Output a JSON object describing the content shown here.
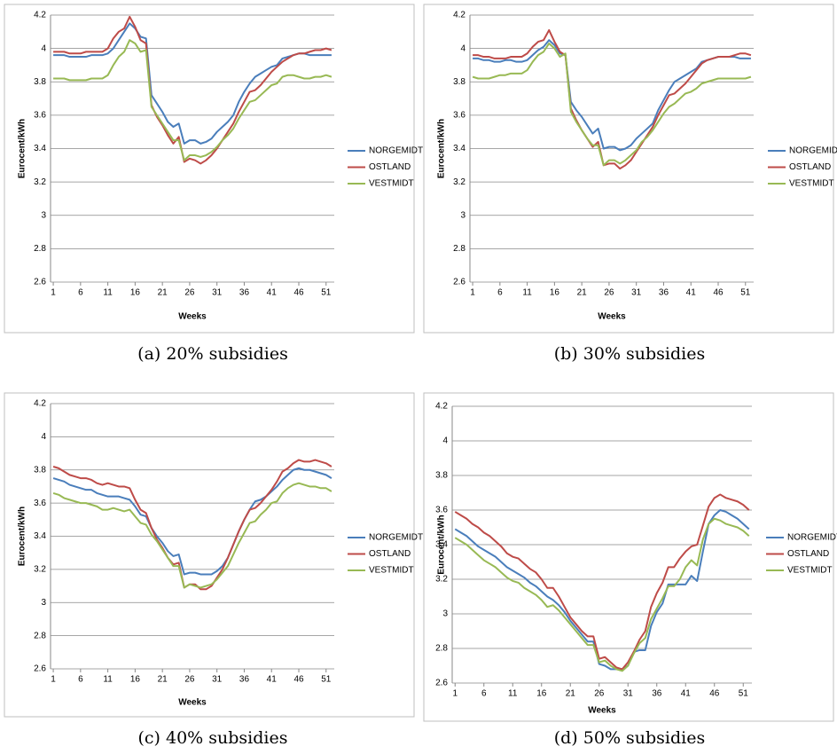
{
  "chart_data": [
    {
      "type": "line",
      "caption": "(a) 20% subsidies",
      "xlabel": "Weeks",
      "ylabel": "Eurocent/kWh",
      "x": [
        1,
        2,
        3,
        4,
        5,
        6,
        7,
        8,
        9,
        10,
        11,
        12,
        13,
        14,
        15,
        16,
        17,
        18,
        19,
        20,
        21,
        22,
        23,
        24,
        25,
        26,
        27,
        28,
        29,
        30,
        31,
        32,
        33,
        34,
        35,
        36,
        37,
        38,
        39,
        40,
        41,
        42,
        43,
        44,
        45,
        46,
        47,
        48,
        49,
        50,
        51,
        52
      ],
      "xlim": [
        0.5,
        52.5
      ],
      "xticks": [
        1,
        6,
        11,
        16,
        21,
        26,
        31,
        36,
        41,
        46,
        51
      ],
      "ylim": [
        2.6,
        4.2
      ],
      "yticks": [
        2.6,
        2.8,
        3,
        3.2,
        3.4,
        3.6,
        3.8,
        4,
        4.2
      ],
      "grid": true,
      "series": [
        {
          "name": "NORGEMIDT",
          "color": "#4a7ebb",
          "values": [
            3.96,
            3.96,
            3.96,
            3.95,
            3.95,
            3.95,
            3.95,
            3.96,
            3.96,
            3.96,
            3.97,
            4.0,
            4.05,
            4.1,
            4.15,
            4.12,
            4.07,
            4.06,
            3.72,
            3.67,
            3.62,
            3.56,
            3.53,
            3.55,
            3.43,
            3.45,
            3.45,
            3.43,
            3.44,
            3.46,
            3.5,
            3.53,
            3.56,
            3.6,
            3.68,
            3.74,
            3.79,
            3.83,
            3.85,
            3.87,
            3.89,
            3.9,
            3.94,
            3.95,
            3.96,
            3.97,
            3.97,
            3.96,
            3.96,
            3.96,
            3.96,
            3.96
          ]
        },
        {
          "name": "OSTLAND",
          "color": "#be4b48",
          "values": [
            3.98,
            3.98,
            3.98,
            3.97,
            3.97,
            3.97,
            3.98,
            3.98,
            3.98,
            3.98,
            4.0,
            4.06,
            4.1,
            4.12,
            4.19,
            4.13,
            4.05,
            4.03,
            3.66,
            3.59,
            3.54,
            3.48,
            3.43,
            3.47,
            3.32,
            3.34,
            3.33,
            3.31,
            3.33,
            3.36,
            3.4,
            3.45,
            3.5,
            3.55,
            3.62,
            3.68,
            3.74,
            3.75,
            3.78,
            3.82,
            3.86,
            3.89,
            3.92,
            3.94,
            3.96,
            3.97,
            3.97,
            3.98,
            3.99,
            3.99,
            4.0,
            3.99
          ]
        },
        {
          "name": "VESTMIDT",
          "color": "#98b954",
          "values": [
            3.82,
            3.82,
            3.82,
            3.81,
            3.81,
            3.81,
            3.81,
            3.82,
            3.82,
            3.82,
            3.84,
            3.9,
            3.95,
            3.98,
            4.05,
            4.03,
            3.98,
            3.99,
            3.65,
            3.6,
            3.55,
            3.5,
            3.45,
            3.45,
            3.33,
            3.36,
            3.36,
            3.35,
            3.36,
            3.38,
            3.41,
            3.45,
            3.48,
            3.52,
            3.58,
            3.63,
            3.68,
            3.69,
            3.72,
            3.75,
            3.78,
            3.79,
            3.83,
            3.84,
            3.84,
            3.83,
            3.82,
            3.82,
            3.83,
            3.83,
            3.84,
            3.83
          ]
        }
      ]
    },
    {
      "type": "line",
      "caption": "(b) 30% subsidies",
      "xlabel": "Weeks",
      "ylabel": "Eurocent/kWh",
      "x": [
        1,
        2,
        3,
        4,
        5,
        6,
        7,
        8,
        9,
        10,
        11,
        12,
        13,
        14,
        15,
        16,
        17,
        18,
        19,
        20,
        21,
        22,
        23,
        24,
        25,
        26,
        27,
        28,
        29,
        30,
        31,
        32,
        33,
        34,
        35,
        36,
        37,
        38,
        39,
        40,
        41,
        42,
        43,
        44,
        45,
        46,
        47,
        48,
        49,
        50,
        51,
        52
      ],
      "xlim": [
        0.5,
        52.5
      ],
      "xticks": [
        1,
        6,
        11,
        16,
        21,
        26,
        31,
        36,
        41,
        46,
        51
      ],
      "ylim": [
        2.6,
        4.2
      ],
      "yticks": [
        2.6,
        2.8,
        3,
        3.2,
        3.4,
        3.6,
        3.8,
        4,
        4.2
      ],
      "grid": true,
      "series": [
        {
          "name": "NORGEMIDT",
          "color": "#4a7ebb",
          "values": [
            3.94,
            3.94,
            3.93,
            3.93,
            3.92,
            3.92,
            3.93,
            3.93,
            3.92,
            3.92,
            3.93,
            3.96,
            3.99,
            4.01,
            4.05,
            4.02,
            3.97,
            3.96,
            3.68,
            3.63,
            3.59,
            3.54,
            3.49,
            3.52,
            3.4,
            3.41,
            3.41,
            3.39,
            3.4,
            3.42,
            3.46,
            3.49,
            3.52,
            3.55,
            3.63,
            3.69,
            3.75,
            3.8,
            3.82,
            3.84,
            3.86,
            3.88,
            3.92,
            3.93,
            3.94,
            3.95,
            3.95,
            3.95,
            3.95,
            3.94,
            3.94,
            3.94
          ]
        },
        {
          "name": "OSTLAND",
          "color": "#be4b48",
          "values": [
            3.96,
            3.96,
            3.95,
            3.95,
            3.94,
            3.94,
            3.94,
            3.95,
            3.95,
            3.95,
            3.97,
            4.01,
            4.04,
            4.05,
            4.11,
            4.04,
            3.98,
            3.96,
            3.64,
            3.57,
            3.51,
            3.46,
            3.41,
            3.44,
            3.3,
            3.31,
            3.31,
            3.28,
            3.3,
            3.33,
            3.38,
            3.43,
            3.48,
            3.53,
            3.6,
            3.66,
            3.72,
            3.73,
            3.76,
            3.79,
            3.83,
            3.87,
            3.91,
            3.93,
            3.94,
            3.95,
            3.95,
            3.95,
            3.96,
            3.97,
            3.97,
            3.96
          ]
        },
        {
          "name": "VESTMIDT",
          "color": "#98b954",
          "values": [
            3.83,
            3.82,
            3.82,
            3.82,
            3.83,
            3.84,
            3.84,
            3.85,
            3.85,
            3.85,
            3.87,
            3.92,
            3.96,
            3.98,
            4.03,
            4.0,
            3.95,
            3.97,
            3.62,
            3.56,
            3.51,
            3.46,
            3.42,
            3.42,
            3.3,
            3.33,
            3.33,
            3.31,
            3.33,
            3.36,
            3.39,
            3.44,
            3.47,
            3.51,
            3.56,
            3.61,
            3.65,
            3.67,
            3.7,
            3.73,
            3.74,
            3.76,
            3.79,
            3.8,
            3.81,
            3.82,
            3.82,
            3.82,
            3.82,
            3.82,
            3.82,
            3.83
          ]
        }
      ]
    },
    {
      "type": "line",
      "caption": "(c) 40% subsidies",
      "xlabel": "Weeks",
      "ylabel": "Eurocent/kWh",
      "x": [
        1,
        2,
        3,
        4,
        5,
        6,
        7,
        8,
        9,
        10,
        11,
        12,
        13,
        14,
        15,
        16,
        17,
        18,
        19,
        20,
        21,
        22,
        23,
        24,
        25,
        26,
        27,
        28,
        29,
        30,
        31,
        32,
        33,
        34,
        35,
        36,
        37,
        38,
        39,
        40,
        41,
        42,
        43,
        44,
        45,
        46,
        47,
        48,
        49,
        50,
        51,
        52
      ],
      "xlim": [
        0.5,
        52.5
      ],
      "xticks": [
        1,
        6,
        11,
        16,
        21,
        26,
        31,
        36,
        41,
        46,
        51
      ],
      "ylim": [
        2.6,
        4.2
      ],
      "yticks": [
        2.6,
        2.8,
        3,
        3.2,
        3.4,
        3.6,
        3.8,
        4,
        4.2
      ],
      "grid": true,
      "series": [
        {
          "name": "NORGEMIDT",
          "color": "#4a7ebb",
          "values": [
            3.75,
            3.74,
            3.73,
            3.71,
            3.7,
            3.69,
            3.68,
            3.68,
            3.66,
            3.65,
            3.64,
            3.64,
            3.64,
            3.63,
            3.62,
            3.58,
            3.53,
            3.52,
            3.45,
            3.4,
            3.36,
            3.31,
            3.28,
            3.29,
            3.17,
            3.18,
            3.18,
            3.17,
            3.17,
            3.17,
            3.19,
            3.22,
            3.27,
            3.35,
            3.43,
            3.5,
            3.56,
            3.61,
            3.62,
            3.64,
            3.67,
            3.7,
            3.74,
            3.77,
            3.8,
            3.81,
            3.8,
            3.8,
            3.79,
            3.78,
            3.77,
            3.75
          ]
        },
        {
          "name": "OSTLAND",
          "color": "#be4b48",
          "values": [
            3.82,
            3.81,
            3.79,
            3.77,
            3.76,
            3.75,
            3.75,
            3.74,
            3.72,
            3.71,
            3.72,
            3.71,
            3.7,
            3.7,
            3.69,
            3.62,
            3.56,
            3.54,
            3.45,
            3.38,
            3.33,
            3.27,
            3.23,
            3.24,
            3.09,
            3.11,
            3.11,
            3.08,
            3.08,
            3.1,
            3.15,
            3.2,
            3.27,
            3.35,
            3.43,
            3.5,
            3.56,
            3.57,
            3.6,
            3.64,
            3.68,
            3.73,
            3.79,
            3.81,
            3.84,
            3.86,
            3.85,
            3.85,
            3.86,
            3.85,
            3.84,
            3.82
          ]
        },
        {
          "name": "VESTMIDT",
          "color": "#98b954",
          "values": [
            3.66,
            3.65,
            3.63,
            3.62,
            3.61,
            3.6,
            3.6,
            3.59,
            3.58,
            3.56,
            3.56,
            3.57,
            3.56,
            3.55,
            3.56,
            3.52,
            3.48,
            3.47,
            3.41,
            3.37,
            3.32,
            3.27,
            3.22,
            3.22,
            3.09,
            3.11,
            3.1,
            3.09,
            3.1,
            3.11,
            3.14,
            3.18,
            3.22,
            3.29,
            3.36,
            3.42,
            3.48,
            3.49,
            3.53,
            3.56,
            3.6,
            3.61,
            3.66,
            3.69,
            3.71,
            3.72,
            3.71,
            3.7,
            3.7,
            3.69,
            3.69,
            3.67
          ]
        }
      ]
    },
    {
      "type": "line",
      "caption": "(d) 50% subsidies",
      "xlabel": "Weeks",
      "ylabel": "Eurocent/kWh",
      "x": [
        1,
        2,
        3,
        4,
        5,
        6,
        7,
        8,
        9,
        10,
        11,
        12,
        13,
        14,
        15,
        16,
        17,
        18,
        19,
        20,
        21,
        22,
        23,
        24,
        25,
        26,
        27,
        28,
        29,
        30,
        31,
        32,
        33,
        34,
        35,
        36,
        37,
        38,
        39,
        40,
        41,
        42,
        43,
        44,
        45,
        46,
        47,
        48,
        49,
        50,
        51,
        52
      ],
      "xlim": [
        0.5,
        52.5
      ],
      "xticks": [
        1,
        6,
        11,
        16,
        21,
        26,
        31,
        36,
        41,
        46,
        51
      ],
      "ylim": [
        2.6,
        4.2
      ],
      "yticks": [
        2.6,
        2.8,
        3,
        3.2,
        3.4,
        3.6,
        3.8,
        4,
        4.2
      ],
      "grid": true,
      "series": [
        {
          "name": "NORGEMIDT",
          "color": "#4a7ebb",
          "values": [
            3.49,
            3.47,
            3.45,
            3.42,
            3.39,
            3.37,
            3.35,
            3.33,
            3.3,
            3.27,
            3.25,
            3.23,
            3.21,
            3.18,
            3.16,
            3.13,
            3.1,
            3.08,
            3.05,
            3.01,
            2.96,
            2.92,
            2.88,
            2.84,
            2.84,
            2.71,
            2.7,
            2.68,
            2.68,
            2.68,
            2.7,
            2.78,
            2.79,
            2.79,
            2.93,
            3.01,
            3.06,
            3.17,
            3.17,
            3.17,
            3.17,
            3.22,
            3.19,
            3.36,
            3.52,
            3.57,
            3.6,
            3.59,
            3.57,
            3.55,
            3.52,
            3.49
          ]
        },
        {
          "name": "OSTLAND",
          "color": "#be4b48",
          "values": [
            3.59,
            3.57,
            3.55,
            3.52,
            3.5,
            3.47,
            3.45,
            3.42,
            3.39,
            3.35,
            3.33,
            3.32,
            3.29,
            3.26,
            3.24,
            3.2,
            3.15,
            3.15,
            3.1,
            3.04,
            2.98,
            2.94,
            2.9,
            2.87,
            2.87,
            2.74,
            2.75,
            2.72,
            2.69,
            2.68,
            2.72,
            2.78,
            2.85,
            2.9,
            3.04,
            3.12,
            3.18,
            3.27,
            3.27,
            3.32,
            3.36,
            3.39,
            3.4,
            3.51,
            3.62,
            3.67,
            3.69,
            3.67,
            3.66,
            3.65,
            3.63,
            3.6
          ]
        },
        {
          "name": "VESTMIDT",
          "color": "#98b954",
          "values": [
            3.44,
            3.42,
            3.4,
            3.37,
            3.34,
            3.31,
            3.29,
            3.27,
            3.24,
            3.21,
            3.19,
            3.18,
            3.15,
            3.13,
            3.11,
            3.08,
            3.04,
            3.05,
            3.02,
            2.98,
            2.94,
            2.9,
            2.86,
            2.82,
            2.82,
            2.72,
            2.73,
            2.7,
            2.68,
            2.67,
            2.7,
            2.77,
            2.83,
            2.86,
            2.97,
            3.03,
            3.09,
            3.16,
            3.16,
            3.2,
            3.27,
            3.31,
            3.28,
            3.43,
            3.52,
            3.55,
            3.54,
            3.52,
            3.51,
            3.5,
            3.48,
            3.45
          ]
        }
      ]
    }
  ]
}
